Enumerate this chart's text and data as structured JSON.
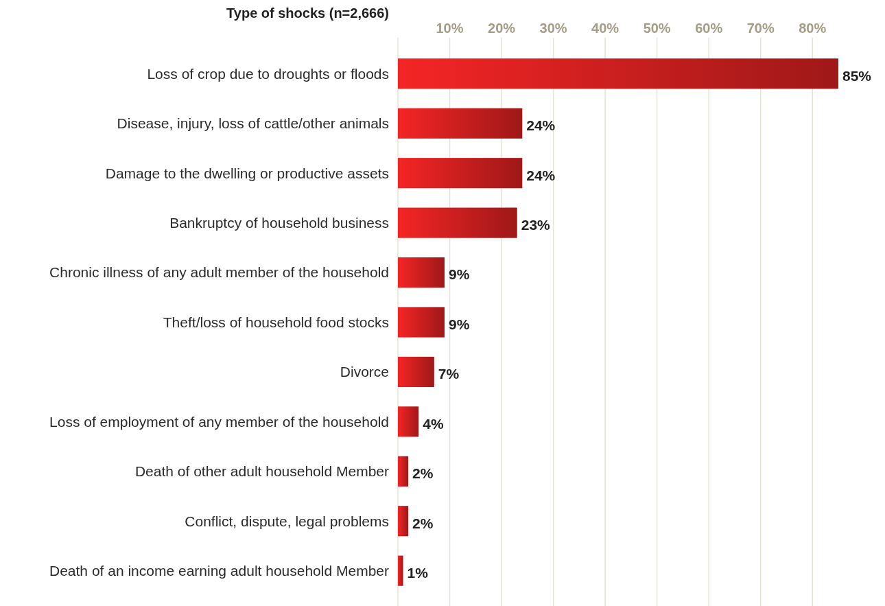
{
  "chart_data": {
    "type": "bar",
    "orientation": "horizontal",
    "title": "Type of shocks (n=2,666)",
    "categories": [
      "Loss of crop due to droughts or floods",
      "Disease, injury, loss of cattle/other animals",
      "Damage to the dwelling or productive assets",
      "Bankruptcy of household business",
      "Chronic illness of any adult member of the household",
      "Theft/loss of household food stocks",
      "Divorce",
      "Loss of employment of any member of the household",
      "Death of other adult household Member",
      "Conflict, dispute, legal problems",
      "Death of an income earning adult household Member"
    ],
    "values": [
      85,
      24,
      24,
      23,
      9,
      9,
      7,
      4,
      2,
      2,
      1
    ],
    "color": "#d42020",
    "xlim": [
      0,
      85
    ],
    "xticks": [
      {
        "value": 10,
        "label": "10%"
      },
      {
        "value": 20,
        "label": "20%"
      },
      {
        "value": 30,
        "label": "30%"
      },
      {
        "value": 40,
        "label": "40%"
      },
      {
        "value": 50,
        "label": "50%"
      },
      {
        "value": 60,
        "label": "60%"
      },
      {
        "value": 70,
        "label": "70%"
      },
      {
        "value": 80,
        "label": "80%"
      }
    ],
    "value_labels": [
      "85%",
      "24%",
      "24%",
      "23%",
      "9%",
      "9%",
      "7%",
      "4%",
      "2%",
      "2%",
      "1%"
    ],
    "grid": "x"
  }
}
